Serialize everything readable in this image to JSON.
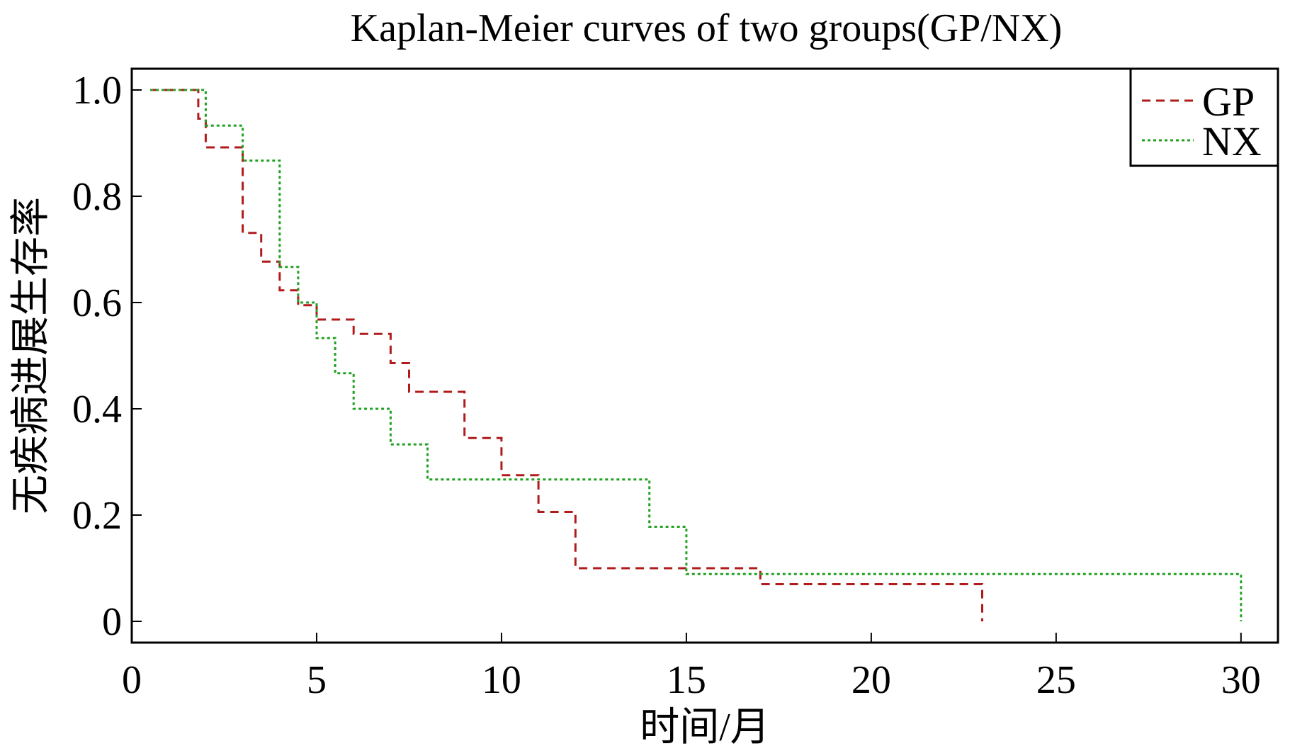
{
  "chart_data": {
    "type": "line",
    "title": "Kaplan-Meier curves of two groups(GP/NX)",
    "xlabel": "时间/月",
    "ylabel": "无疾病进展生存率",
    "xlim": [
      0,
      31
    ],
    "ylim": [
      -0.04,
      1.04
    ],
    "x_ticks": [
      0,
      5,
      10,
      15,
      20,
      25,
      30
    ],
    "x_tick_labels": [
      "0",
      "5",
      "10",
      "15",
      "20",
      "25",
      "30"
    ],
    "y_ticks": [
      0,
      0.2,
      0.4,
      0.6,
      0.8,
      1.0
    ],
    "y_tick_labels": [
      "0",
      "0.2",
      "0.4",
      "0.6",
      "0.8",
      "1.0"
    ],
    "grid": false,
    "legend_position": "top-right",
    "step": true,
    "series": [
      {
        "name": "GP",
        "color": "#b01c1c",
        "line_style": "dashed",
        "points": [
          [
            0.5,
            1.0
          ],
          [
            1.8,
            1.0
          ],
          [
            1.8,
            0.946
          ],
          [
            2.0,
            0.946
          ],
          [
            2.0,
            0.892
          ],
          [
            3.0,
            0.892
          ],
          [
            3.0,
            0.731
          ],
          [
            3.5,
            0.731
          ],
          [
            3.5,
            0.677
          ],
          [
            4.0,
            0.677
          ],
          [
            4.0,
            0.623
          ],
          [
            4.5,
            0.623
          ],
          [
            4.5,
            0.595
          ],
          [
            5.0,
            0.595
          ],
          [
            5.0,
            0.568
          ],
          [
            6.0,
            0.568
          ],
          [
            6.0,
            0.541
          ],
          [
            7.0,
            0.541
          ],
          [
            7.0,
            0.486
          ],
          [
            7.5,
            0.486
          ],
          [
            7.5,
            0.432
          ],
          [
            9.0,
            0.432
          ],
          [
            9.0,
            0.345
          ],
          [
            10.0,
            0.345
          ],
          [
            10.0,
            0.275
          ],
          [
            11.0,
            0.275
          ],
          [
            11.0,
            0.206
          ],
          [
            12.0,
            0.206
          ],
          [
            12.0,
            0.1
          ],
          [
            17.0,
            0.1
          ],
          [
            17.0,
            0.07
          ],
          [
            23.0,
            0.07
          ],
          [
            23.0,
            0.0
          ]
        ]
      },
      {
        "name": "NX",
        "color": "#22a022",
        "line_style": "dotted",
        "points": [
          [
            0.5,
            1.0
          ],
          [
            2.0,
            1.0
          ],
          [
            2.0,
            0.933
          ],
          [
            3.0,
            0.933
          ],
          [
            3.0,
            0.867
          ],
          [
            4.0,
            0.867
          ],
          [
            4.0,
            0.667
          ],
          [
            4.5,
            0.667
          ],
          [
            4.5,
            0.6
          ],
          [
            5.0,
            0.6
          ],
          [
            5.0,
            0.533
          ],
          [
            5.5,
            0.533
          ],
          [
            5.5,
            0.467
          ],
          [
            6.0,
            0.467
          ],
          [
            6.0,
            0.4
          ],
          [
            7.0,
            0.4
          ],
          [
            7.0,
            0.333
          ],
          [
            8.0,
            0.333
          ],
          [
            8.0,
            0.267
          ],
          [
            14.0,
            0.267
          ],
          [
            14.0,
            0.178
          ],
          [
            15.0,
            0.178
          ],
          [
            15.0,
            0.089
          ],
          [
            30.0,
            0.089
          ],
          [
            30.0,
            0.0
          ]
        ]
      }
    ]
  }
}
